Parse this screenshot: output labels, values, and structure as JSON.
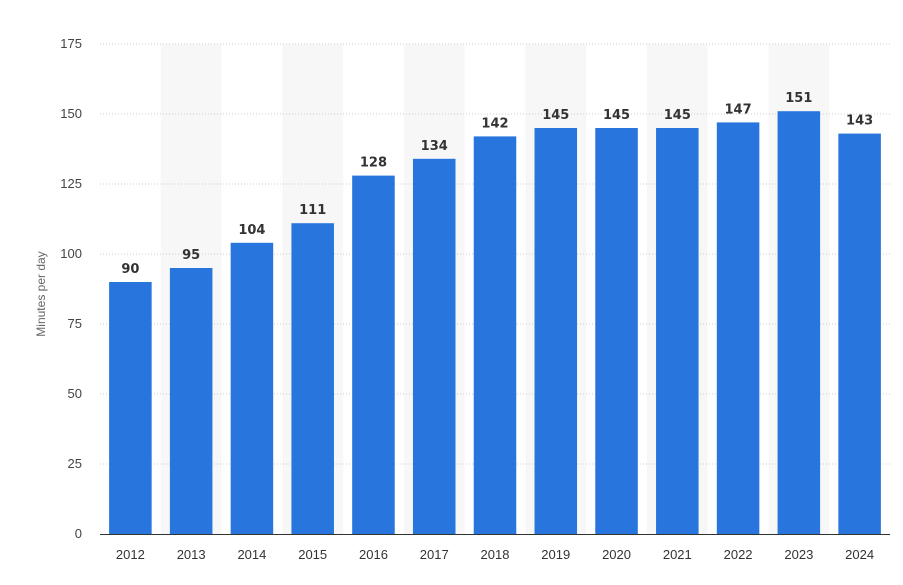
{
  "chart_data": {
    "type": "bar",
    "categories": [
      "2012",
      "2013",
      "2014",
      "2015",
      "2016",
      "2017",
      "2018",
      "2019",
      "2020",
      "2021",
      "2022",
      "2023",
      "2024"
    ],
    "values": [
      90,
      95,
      104,
      111,
      128,
      134,
      142,
      145,
      145,
      145,
      147,
      151,
      143
    ],
    "title": "",
    "xlabel": "",
    "ylabel": "Minutes per day",
    "ylim": [
      0,
      175
    ],
    "yticks": [
      0,
      25,
      50,
      75,
      100,
      125,
      150,
      175
    ],
    "grid": true,
    "data_labels": true,
    "colors": {
      "bar": "#2876dd",
      "alt_band": "#f7f7f7",
      "grid": "#cccccc",
      "axis": "#333333"
    }
  }
}
